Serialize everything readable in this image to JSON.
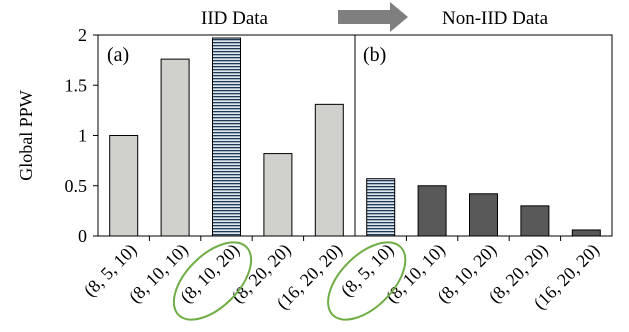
{
  "chart_data": {
    "type": "bar",
    "ylabel": "Global PPW",
    "ylim": [
      0,
      2
    ],
    "yticks": [
      0,
      0.5,
      1,
      1.5,
      2
    ],
    "ytick_labels": [
      "0",
      "0.5",
      "1",
      "1.5",
      "2"
    ],
    "grid": false,
    "panel_labels": [
      "(a)",
      "(b)"
    ],
    "section_titles": [
      "IID Data",
      "Non-IID Data"
    ],
    "arrow_color": "#7f7f7f",
    "highlight_color": "#70ad47",
    "categories": [
      "(8, 5, 10)",
      "(8, 10, 10)",
      "(8, 10, 20)",
      "(8, 20, 20)",
      "(16, 20, 20)",
      "(8, 5, 10)",
      "(8, 10, 10)",
      "(8, 10, 20)",
      "(8, 20, 20)",
      "(16, 20, 20)"
    ],
    "values": [
      1.0,
      1.76,
      1.97,
      0.82,
      1.31,
      0.57,
      0.5,
      0.42,
      0.3,
      0.06
    ],
    "bar_styles": [
      "light",
      "light",
      "striped",
      "light",
      "light",
      "striped",
      "dark",
      "dark",
      "dark",
      "dark"
    ],
    "colors": {
      "light": "#d0d0cc",
      "dark": "#595959",
      "striped_fill": "#dfe6ee",
      "striped_line": "#1f3a56"
    },
    "highlighted": [
      2,
      5
    ]
  }
}
